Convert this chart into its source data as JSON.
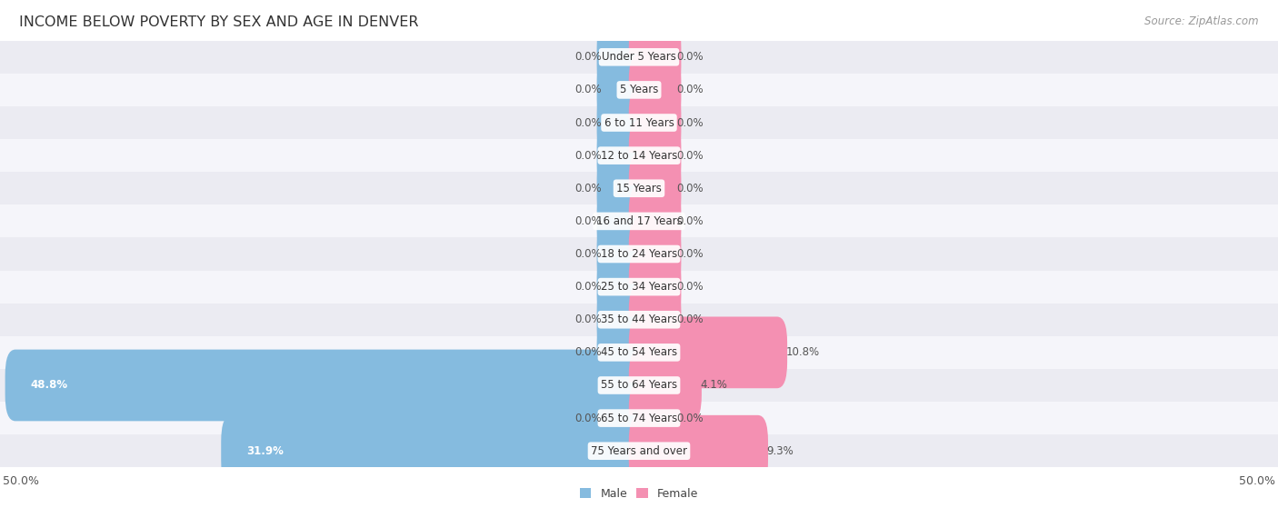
{
  "title": "INCOME BELOW POVERTY BY SEX AND AGE IN DENVER",
  "source": "Source: ZipAtlas.com",
  "categories": [
    "Under 5 Years",
    "5 Years",
    "6 to 11 Years",
    "12 to 14 Years",
    "15 Years",
    "16 and 17 Years",
    "18 to 24 Years",
    "25 to 34 Years",
    "35 to 44 Years",
    "45 to 54 Years",
    "55 to 64 Years",
    "65 to 74 Years",
    "75 Years and over"
  ],
  "male_values": [
    0.0,
    0.0,
    0.0,
    0.0,
    0.0,
    0.0,
    0.0,
    0.0,
    0.0,
    0.0,
    48.8,
    0.0,
    31.9
  ],
  "female_values": [
    0.0,
    0.0,
    0.0,
    0.0,
    0.0,
    0.0,
    0.0,
    0.0,
    0.0,
    10.8,
    4.1,
    0.0,
    9.3
  ],
  "male_color": "#85BBDF",
  "female_color": "#F490B2",
  "xlim": 50.0,
  "stub_size": 2.5,
  "title_fontsize": 11.5,
  "label_fontsize": 8.5,
  "tick_fontsize": 9,
  "source_fontsize": 8.5,
  "bar_height": 0.58,
  "figure_bg": "#FFFFFF",
  "row_color_odd": "#EBEBF2",
  "row_color_even": "#F5F5FA"
}
